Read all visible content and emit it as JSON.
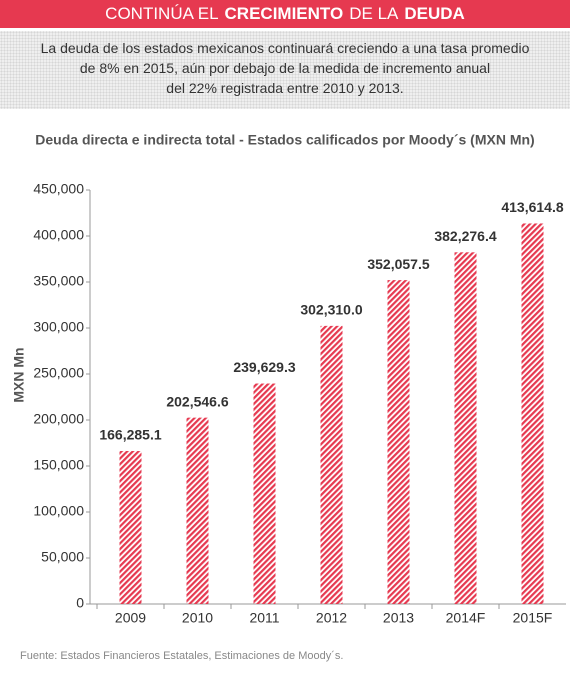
{
  "header": {
    "title_parts": [
      {
        "text": "CONTINÚA EL",
        "bold": false
      },
      {
        "text": "CRECIMIENTO",
        "bold": true
      },
      {
        "text": "DE LA",
        "bold": false
      },
      {
        "text": "DEUDA",
        "bold": true
      }
    ]
  },
  "intro": {
    "lines": [
      "La deuda de los estados mexicanos continuará creciendo a una tasa promedio",
      "de 8% en 2015, aún por debajo de la medida de incremento anual",
      "del 22% registrada entre 2010 y 2013."
    ]
  },
  "chart_data": {
    "type": "bar",
    "title": "Deuda directa e indirecta total - Estados calificados por Moody´s (MXN Mn)",
    "y_label": "MXN Mn",
    "categories": [
      "2009",
      "2010",
      "2011",
      "2012",
      "2013",
      "2014F",
      "2015F"
    ],
    "values": [
      166285.1,
      202546.6,
      239629.3,
      302310.0,
      352057.5,
      382276.4,
      413614.8
    ],
    "value_labels": [
      "166,285.1",
      "202,546.6",
      "239,629.3",
      "302,310.0",
      "352,057.5",
      "382,276.4",
      "413,614.8"
    ],
    "color": "#e63950",
    "hatched": true,
    "ylim": [
      0,
      450000
    ],
    "yticks": [
      0,
      {
        "value": 50000,
        "label": "50,000"
      },
      {
        "value": 100000,
        "label": "100,000"
      },
      {
        "value": 150000,
        "label": "150,000"
      },
      {
        "value": 200000,
        "label": "200,000"
      },
      {
        "value": 250000,
        "label": "250,000"
      },
      {
        "value": 300000,
        "label": "300,000"
      },
      {
        "value": 350000,
        "label": "350,000"
      },
      {
        "value": 400000,
        "label": "400,000"
      },
      {
        "value": 450000,
        "label": "450,000"
      }
    ],
    "grid": false
  },
  "source": "Fuente: Estados Financieros Estatales, Estimaciones de Moody´s."
}
